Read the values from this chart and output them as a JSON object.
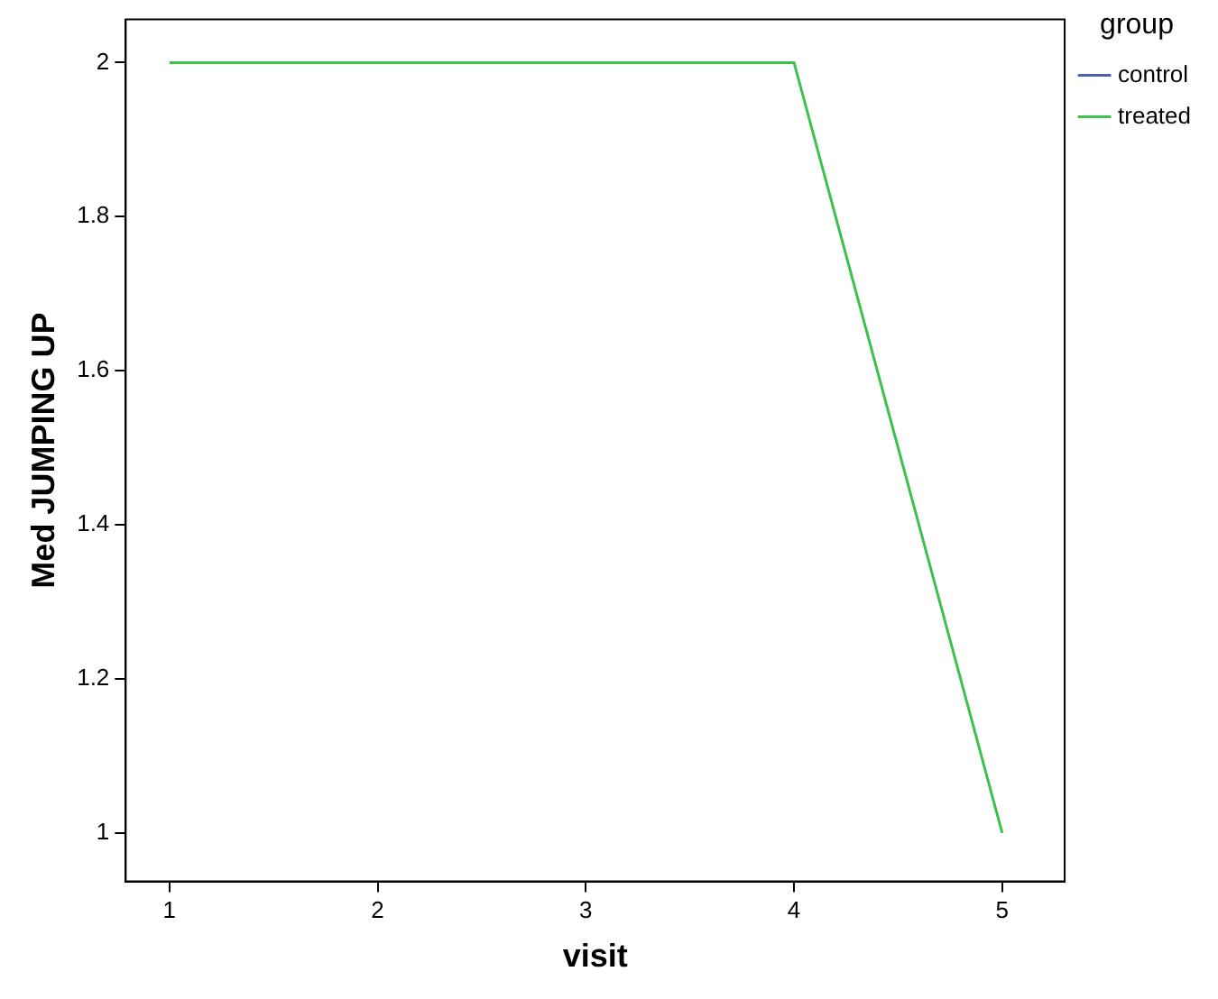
{
  "chart_data": {
    "type": "line",
    "xlabel": "visit",
    "ylabel": "Med JUMPING UP",
    "legend_title": "group",
    "legend": "right",
    "x": [
      1,
      2,
      3,
      4,
      5
    ],
    "series": [
      {
        "name": "control",
        "color": "#4a5fb5",
        "values": [
          null,
          null,
          null,
          null,
          null
        ]
      },
      {
        "name": "treated",
        "color": "#3cc24a",
        "values": [
          2,
          2,
          2,
          2,
          1
        ]
      }
    ],
    "xlim": [
      0.79,
      5.3
    ],
    "xticks": [
      1,
      2,
      3,
      4,
      5
    ],
    "ylim": [
      0.937,
      2.056
    ],
    "yticks": [
      1,
      1.2,
      1.4,
      1.6,
      1.8,
      2
    ],
    "grid": false,
    "marker": "none",
    "line_style": "solid"
  }
}
